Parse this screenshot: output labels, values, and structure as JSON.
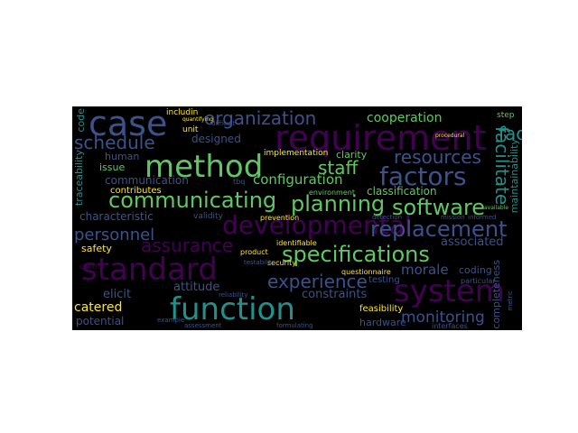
{
  "colors": {
    "background": "#000000",
    "page": "#ffffff",
    "palette": [
      "#440154",
      "#3b528b",
      "#21918c",
      "#5ec962",
      "#fde725"
    ]
  },
  "words": {
    "case": "case",
    "requirement": "requirement",
    "method": "method",
    "organization": "organization",
    "schedule": "schedule",
    "cooperation": "cooperation",
    "factors": "factors",
    "resources": "resources",
    "staff": "staff",
    "facilitate": "facilitate",
    "communicating": "communicating",
    "planning": "planning",
    "software": "software",
    "configuration": "configuration",
    "classification": "classification",
    "communication": "communication",
    "designed": "designed",
    "human": "human",
    "issue": "issue",
    "contributes": "contributes",
    "traceability": "traceability",
    "maintainability": "maintainability",
    "developmental": "developmental",
    "replacement": "replacement",
    "characteristic": "characteristic",
    "personnel": "personnel",
    "assurance": "assurance",
    "associated": "associated",
    "safety": "safety",
    "standard": "standard",
    "specifications": "specifications",
    "morale": "morale",
    "system": "system",
    "experience": "experience",
    "attitude": "attitude",
    "constraints": "constraints",
    "elicit": "elicit",
    "catered": "catered",
    "potential": "potential",
    "function": "function",
    "monitoring": "monitoring",
    "feasibility": "feasibility",
    "hardware": "hardware",
    "coding": "coding",
    "testing": "testing",
    "completeness": "completeness",
    "questionnaire": "questionnaire",
    "security": "security",
    "product": "product",
    "prevention": "prevention",
    "identifiable": "identifiable",
    "validity": "validity",
    "implementation": "implementation",
    "clarity": "clarity",
    "environment": "environment",
    "interfaces": "interfaces",
    "unit": "unit",
    "includin": "includin",
    "tbq": "tbq",
    "code": "code",
    "step": "step",
    "reliability": "reliability",
    "assessment": "assessment",
    "difficult": "difficult",
    "informed": "informed",
    "mission": "mission",
    "particular": "particular",
    "control": "control",
    "testability": "testability",
    "example": "example",
    "formulating": "formulating",
    "detection": "detection",
    "procedural": "procedural",
    "available": "available",
    "metric": "metric",
    "quantifying": "quantifying"
  }
}
